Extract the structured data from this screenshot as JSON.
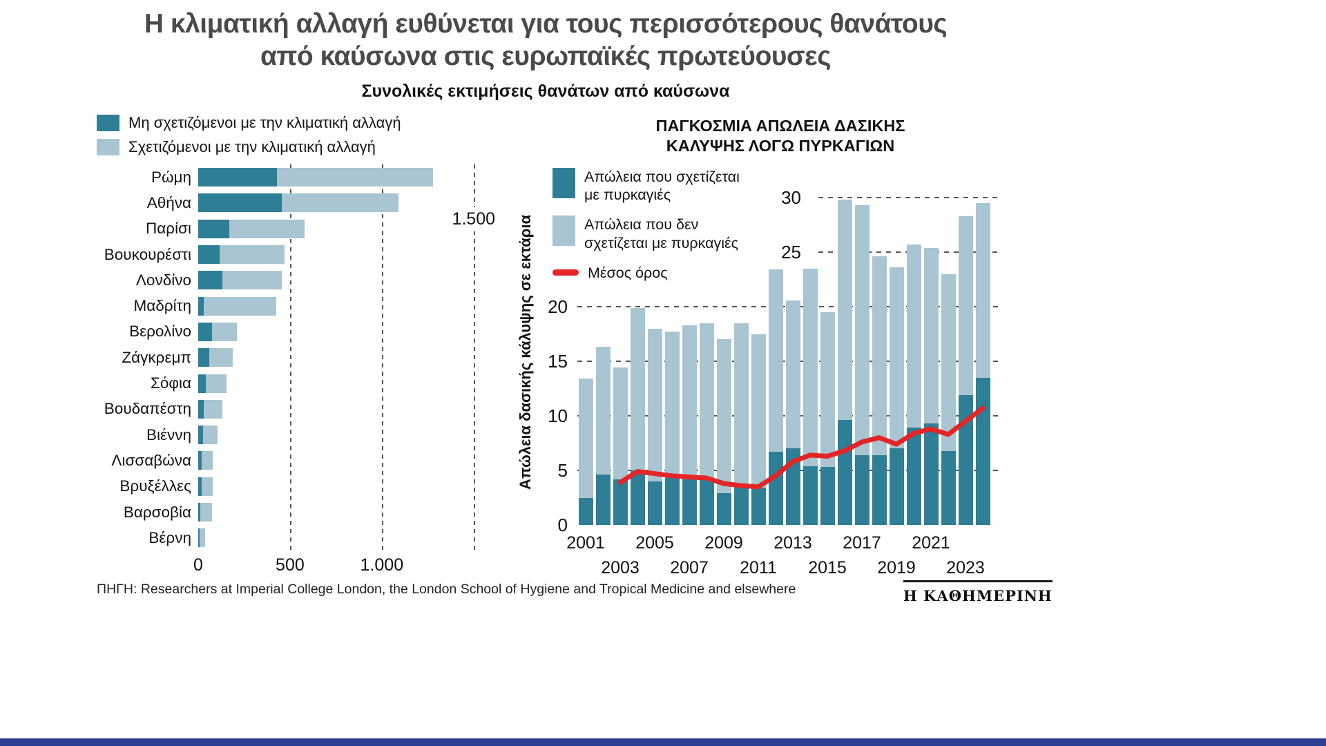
{
  "page": {
    "title_line1": "Η κλιματική αλλαγή ευθύνεται για τους περισσότερους θανάτους",
    "title_line2": "από καύσωνα στις ευρωπαϊκές πρωτεύουσες",
    "subtitle": "Συνολικές εκτιμήσεις θανάτων από καύσωνα",
    "source": "ΠΗΓΗ: Researchers at Imperial College London, the London School of Hygiene and Tropical Medicine and elsewhere",
    "brand": "Η ΚΑΘΗΜΕΡΙΝΗ"
  },
  "colors": {
    "dark": "#2e7e96",
    "light": "#a9c5d1",
    "red": "#e42528",
    "brand_bar": "#2c3e94"
  },
  "chart_data": [
    {
      "type": "bar",
      "orientation": "horizontal",
      "stacked": true,
      "title": "Συνολικές εκτιμήσεις θανάτων από καύσωνα",
      "legend": [
        "Μη σχετιζόμενοι με την κλιματική αλλαγή",
        "Σχετιζόμενοι με την κλιματική αλλαγή"
      ],
      "legend_position": "top-left",
      "grid": "vertical-dashed",
      "categories": [
        "Ρώμη",
        "Αθήνα",
        "Παρίσι",
        "Βουκουρέστι",
        "Λονδίνο",
        "Μαδρίτη",
        "Βερολίνο",
        "Ζάγκρεμπ",
        "Σόφια",
        "Βουδαπέστη",
        "Βιέννη",
        "Λισσαβώνα",
        "Βρυξέλλες",
        "Βαρσοβία",
        "Βέρνη"
      ],
      "series": [
        {
          "name": "Μη σχετιζόμενοι με την κλιματική αλλαγή",
          "values": [
            430,
            455,
            170,
            115,
            130,
            30,
            75,
            60,
            40,
            30,
            25,
            20,
            20,
            12,
            6
          ]
        },
        {
          "name": "Σχετιζόμενοι με την κλιματική αλλαγή",
          "values": [
            850,
            635,
            410,
            355,
            325,
            395,
            135,
            130,
            115,
            100,
            80,
            60,
            60,
            63,
            32
          ]
        }
      ],
      "xlim": [
        0,
        1580
      ],
      "xticks": [
        0,
        500,
        1000,
        1500
      ],
      "xtick_labels": [
        "0",
        "500",
        "1.000",
        "1.500"
      ]
    },
    {
      "type": "bar",
      "stacked": true,
      "title_line1": "ΠΑΓΚΟΣΜΙΑ ΑΠΩΛΕΙΑ ΔΑΣΙΚΗΣ",
      "title_line2": "ΚΑΛΥΨΗΣ ΛΟΓΩ ΠΥΡΚΑΓΙΩΝ",
      "ylabel": "Απώλεια δασικής κάλυψης σε εκτάρια",
      "legend": [
        {
          "line1": "Απώλεια που σχετίζεται",
          "line2": "με πυρκαγιές"
        },
        {
          "line1": "Απώλεια που δεν",
          "line2": "σχετίζεται με πυρκαγιές"
        },
        {
          "line1": "Μέσος όρος",
          "line2": ""
        }
      ],
      "x": [
        2001,
        2002,
        2003,
        2004,
        2005,
        2006,
        2007,
        2008,
        2009,
        2010,
        2011,
        2012,
        2013,
        2014,
        2015,
        2016,
        2017,
        2018,
        2019,
        2020,
        2021,
        2022,
        2023,
        2024
      ],
      "series": [
        {
          "name": "Απώλεια που σχετίζεται με πυρκαγιές",
          "values": [
            2.5,
            4.6,
            4.2,
            5.0,
            4.0,
            4.5,
            4.2,
            4.3,
            2.9,
            3.7,
            3.4,
            6.7,
            7.0,
            5.4,
            5.3,
            9.6,
            6.4,
            6.4,
            7.0,
            8.9,
            9.3,
            6.8,
            11.9,
            13.5
          ]
        },
        {
          "name": "Απώλεια που δεν σχετίζεται με πυρκαγιές",
          "values": [
            10.9,
            11.7,
            10.2,
            14.9,
            14.0,
            13.2,
            14.1,
            14.2,
            14.1,
            14.8,
            14.1,
            16.7,
            13.6,
            18.1,
            14.2,
            20.2,
            22.9,
            18.2,
            16.6,
            16.8,
            16.1,
            16.2,
            16.4,
            16.0
          ]
        },
        {
          "name": "Μέσος όρος",
          "type": "line",
          "values": [
            null,
            null,
            3.9,
            4.9,
            4.7,
            4.5,
            4.4,
            4.3,
            3.8,
            3.6,
            3.5,
            4.5,
            5.8,
            6.4,
            6.3,
            6.8,
            7.6,
            8.0,
            7.4,
            8.4,
            8.8,
            8.3,
            9.5,
            10.7
          ]
        }
      ],
      "ylim": [
        0,
        30
      ],
      "yticks": [
        0,
        5,
        10,
        15,
        20,
        25,
        30
      ],
      "xticks_row1": [
        2001,
        2005,
        2009,
        2013,
        2017,
        2021
      ],
      "xticks_row2": [
        2003,
        2007,
        2011,
        2015,
        2019,
        2023
      ]
    }
  ]
}
